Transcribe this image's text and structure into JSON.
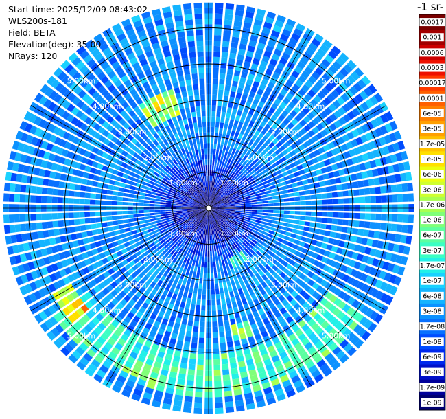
{
  "header": {
    "start_time": "Start time: 2025/12/09 08:43:02",
    "instrument": "WLS200s-181",
    "field": "Field: BETA",
    "elevation": "Elevation(deg): 35.00",
    "nrays": "NRays: 120"
  },
  "colorbar": {
    "title_fragment": "-1 sr-",
    "labels": [
      "0.0017",
      "0.001",
      "0.0006",
      "0.0003",
      "0.00017",
      "0.0001",
      "6e-05",
      "3e-05",
      "1.7e-05",
      "1e-05",
      "6e-06",
      "3e-06",
      "1.7e-06",
      "1e-06",
      "6e-07",
      "3e-07",
      "1.7e-07",
      "1e-07",
      "6e-08",
      "3e-08",
      "1.7e-08",
      "1e-08",
      "6e-09",
      "3e-09",
      "1.7e-09",
      "1e-09"
    ],
    "colors": [
      "#7a0000",
      "#a30000",
      "#cc0000",
      "#ee1100",
      "#ff3a00",
      "#ff6000",
      "#ff8000",
      "#ffa000",
      "#ffc200",
      "#ffe000",
      "#ecff10",
      "#cfff30",
      "#a8ff50",
      "#80ff78",
      "#5cffa0",
      "#3cffc4",
      "#22f0e8",
      "#1ad2ff",
      "#14b4ff",
      "#0c92ff",
      "#0870ff",
      "#004cff",
      "#0028ee",
      "#0010c8",
      "#00009a",
      "#000070"
    ]
  },
  "chart_data": {
    "type": "heatmap",
    "projection": "polar-ppi",
    "field": "BETA",
    "elevation_deg": 35.0,
    "n_rays": 120,
    "range_rings_km": [
      1.0,
      2.0,
      3.0,
      4.0,
      5.0
    ],
    "max_range_km": 5.7,
    "ring_labels": [
      "1.00km",
      "2.00km",
      "3.00km",
      "4.00km",
      "5.00km"
    ],
    "colorscale_range": [
      1e-09,
      0.0017
    ],
    "colorscale": "log",
    "dominant_value": 3e-08,
    "notes_on_pattern": "Mostly 1.7e-08 to 1e-07 everywhere; lower values (1e-09 to 1e-08) near the center; higher values (1e-07 to 1.7e-05) in an arc at about 4.5 to 5 km on the south side and in small patches to the north-northwest and west-southwest."
  }
}
